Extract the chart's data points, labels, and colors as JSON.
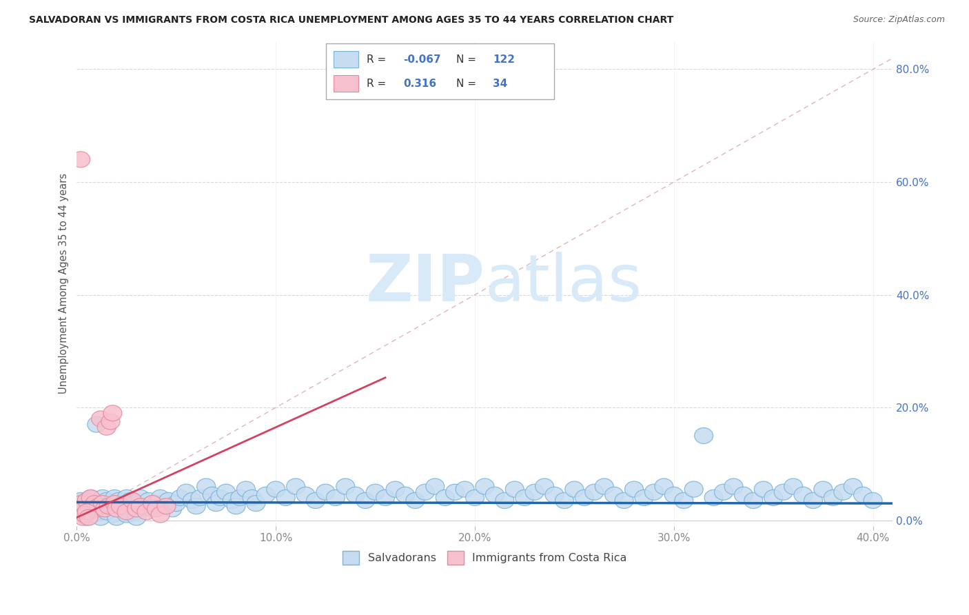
{
  "title": "SALVADORAN VS IMMIGRANTS FROM COSTA RICA UNEMPLOYMENT AMONG AGES 35 TO 44 YEARS CORRELATION CHART",
  "source": "Source: ZipAtlas.com",
  "xlim": [
    0.0,
    0.41
  ],
  "ylim": [
    -0.01,
    0.85
  ],
  "ylabel": "Unemployment Among Ages 35 to 44 years",
  "blue_color_face": "#c6dcf0",
  "blue_color_edge": "#7ab3d9",
  "pink_color_face": "#f7c0ce",
  "pink_color_edge": "#e8889d",
  "blue_line_color": "#2166ac",
  "pink_line_color": "#d44060",
  "diag_color": "#e0a0b0",
  "watermark_color": "#d8eaf7",
  "tick_color_y": "#4472c4",
  "tick_color_x": "#888888",
  "grid_color": "#d8d8d8",
  "blue_points": [
    [
      0.002,
      0.035
    ],
    [
      0.003,
      0.02
    ],
    [
      0.004,
      0.025
    ],
    [
      0.005,
      0.03
    ],
    [
      0.006,
      0.01
    ],
    [
      0.007,
      0.04
    ],
    [
      0.008,
      0.015
    ],
    [
      0.009,
      0.025
    ],
    [
      0.01,
      0.02
    ],
    [
      0.011,
      0.03
    ],
    [
      0.012,
      0.015
    ],
    [
      0.013,
      0.04
    ],
    [
      0.014,
      0.025
    ],
    [
      0.015,
      0.035
    ],
    [
      0.016,
      0.02
    ],
    [
      0.017,
      0.03
    ],
    [
      0.018,
      0.01
    ],
    [
      0.019,
      0.04
    ],
    [
      0.02,
      0.025
    ],
    [
      0.021,
      0.035
    ],
    [
      0.022,
      0.02
    ],
    [
      0.023,
      0.03
    ],
    [
      0.024,
      0.015
    ],
    [
      0.025,
      0.04
    ],
    [
      0.026,
      0.025
    ],
    [
      0.027,
      0.035
    ],
    [
      0.028,
      0.02
    ],
    [
      0.029,
      0.03
    ],
    [
      0.03,
      0.015
    ],
    [
      0.032,
      0.04
    ],
    [
      0.034,
      0.025
    ],
    [
      0.036,
      0.035
    ],
    [
      0.038,
      0.02
    ],
    [
      0.04,
      0.03
    ],
    [
      0.042,
      0.04
    ],
    [
      0.044,
      0.025
    ],
    [
      0.046,
      0.035
    ],
    [
      0.048,
      0.02
    ],
    [
      0.05,
      0.03
    ],
    [
      0.052,
      0.04
    ],
    [
      0.055,
      0.05
    ],
    [
      0.058,
      0.035
    ],
    [
      0.06,
      0.025
    ],
    [
      0.062,
      0.04
    ],
    [
      0.065,
      0.06
    ],
    [
      0.068,
      0.045
    ],
    [
      0.07,
      0.03
    ],
    [
      0.072,
      0.04
    ],
    [
      0.075,
      0.05
    ],
    [
      0.078,
      0.035
    ],
    [
      0.08,
      0.025
    ],
    [
      0.082,
      0.04
    ],
    [
      0.085,
      0.055
    ],
    [
      0.088,
      0.04
    ],
    [
      0.09,
      0.03
    ],
    [
      0.095,
      0.045
    ],
    [
      0.1,
      0.055
    ],
    [
      0.105,
      0.04
    ],
    [
      0.11,
      0.06
    ],
    [
      0.115,
      0.045
    ],
    [
      0.12,
      0.035
    ],
    [
      0.125,
      0.05
    ],
    [
      0.13,
      0.04
    ],
    [
      0.135,
      0.06
    ],
    [
      0.14,
      0.045
    ],
    [
      0.145,
      0.035
    ],
    [
      0.15,
      0.05
    ],
    [
      0.155,
      0.04
    ],
    [
      0.16,
      0.055
    ],
    [
      0.165,
      0.045
    ],
    [
      0.17,
      0.035
    ],
    [
      0.175,
      0.05
    ],
    [
      0.18,
      0.06
    ],
    [
      0.185,
      0.04
    ],
    [
      0.19,
      0.05
    ],
    [
      0.195,
      0.055
    ],
    [
      0.2,
      0.04
    ],
    [
      0.205,
      0.06
    ],
    [
      0.21,
      0.045
    ],
    [
      0.215,
      0.035
    ],
    [
      0.22,
      0.055
    ],
    [
      0.225,
      0.04
    ],
    [
      0.23,
      0.05
    ],
    [
      0.235,
      0.06
    ],
    [
      0.24,
      0.045
    ],
    [
      0.245,
      0.035
    ],
    [
      0.25,
      0.055
    ],
    [
      0.255,
      0.04
    ],
    [
      0.26,
      0.05
    ],
    [
      0.265,
      0.06
    ],
    [
      0.27,
      0.045
    ],
    [
      0.275,
      0.035
    ],
    [
      0.28,
      0.055
    ],
    [
      0.285,
      0.04
    ],
    [
      0.29,
      0.05
    ],
    [
      0.295,
      0.06
    ],
    [
      0.3,
      0.045
    ],
    [
      0.305,
      0.035
    ],
    [
      0.31,
      0.055
    ],
    [
      0.315,
      0.15
    ],
    [
      0.32,
      0.04
    ],
    [
      0.325,
      0.05
    ],
    [
      0.33,
      0.06
    ],
    [
      0.335,
      0.045
    ],
    [
      0.34,
      0.035
    ],
    [
      0.345,
      0.055
    ],
    [
      0.35,
      0.04
    ],
    [
      0.355,
      0.05
    ],
    [
      0.36,
      0.06
    ],
    [
      0.365,
      0.045
    ],
    [
      0.37,
      0.035
    ],
    [
      0.375,
      0.055
    ],
    [
      0.38,
      0.04
    ],
    [
      0.385,
      0.05
    ],
    [
      0.39,
      0.06
    ],
    [
      0.395,
      0.045
    ],
    [
      0.4,
      0.035
    ],
    [
      0.005,
      0.005
    ],
    [
      0.008,
      0.01
    ],
    [
      0.012,
      0.005
    ],
    [
      0.015,
      0.015
    ],
    [
      0.02,
      0.005
    ],
    [
      0.025,
      0.01
    ],
    [
      0.03,
      0.005
    ],
    [
      0.01,
      0.17
    ]
  ],
  "pink_points": [
    [
      0.002,
      0.03
    ],
    [
      0.003,
      0.02
    ],
    [
      0.004,
      0.025
    ],
    [
      0.005,
      0.035
    ],
    [
      0.006,
      0.015
    ],
    [
      0.007,
      0.04
    ],
    [
      0.008,
      0.025
    ],
    [
      0.009,
      0.03
    ],
    [
      0.01,
      0.02
    ],
    [
      0.011,
      0.025
    ],
    [
      0.012,
      0.18
    ],
    [
      0.013,
      0.03
    ],
    [
      0.014,
      0.02
    ],
    [
      0.015,
      0.165
    ],
    [
      0.016,
      0.025
    ],
    [
      0.017,
      0.175
    ],
    [
      0.018,
      0.19
    ],
    [
      0.019,
      0.03
    ],
    [
      0.02,
      0.02
    ],
    [
      0.022,
      0.025
    ],
    [
      0.025,
      0.015
    ],
    [
      0.028,
      0.035
    ],
    [
      0.03,
      0.02
    ],
    [
      0.032,
      0.025
    ],
    [
      0.035,
      0.015
    ],
    [
      0.038,
      0.03
    ],
    [
      0.04,
      0.02
    ],
    [
      0.042,
      0.01
    ],
    [
      0.045,
      0.025
    ],
    [
      0.003,
      0.005
    ],
    [
      0.004,
      0.01
    ],
    [
      0.005,
      0.015
    ],
    [
      0.006,
      0.005
    ],
    [
      0.002,
      0.64
    ]
  ],
  "pink_trend_x": [
    0.0,
    0.155
  ],
  "pink_trend_y_start": 0.005,
  "pink_trend_slope": 1.6,
  "blue_trend_y_intercept": 0.032,
  "blue_trend_slope": -0.005
}
